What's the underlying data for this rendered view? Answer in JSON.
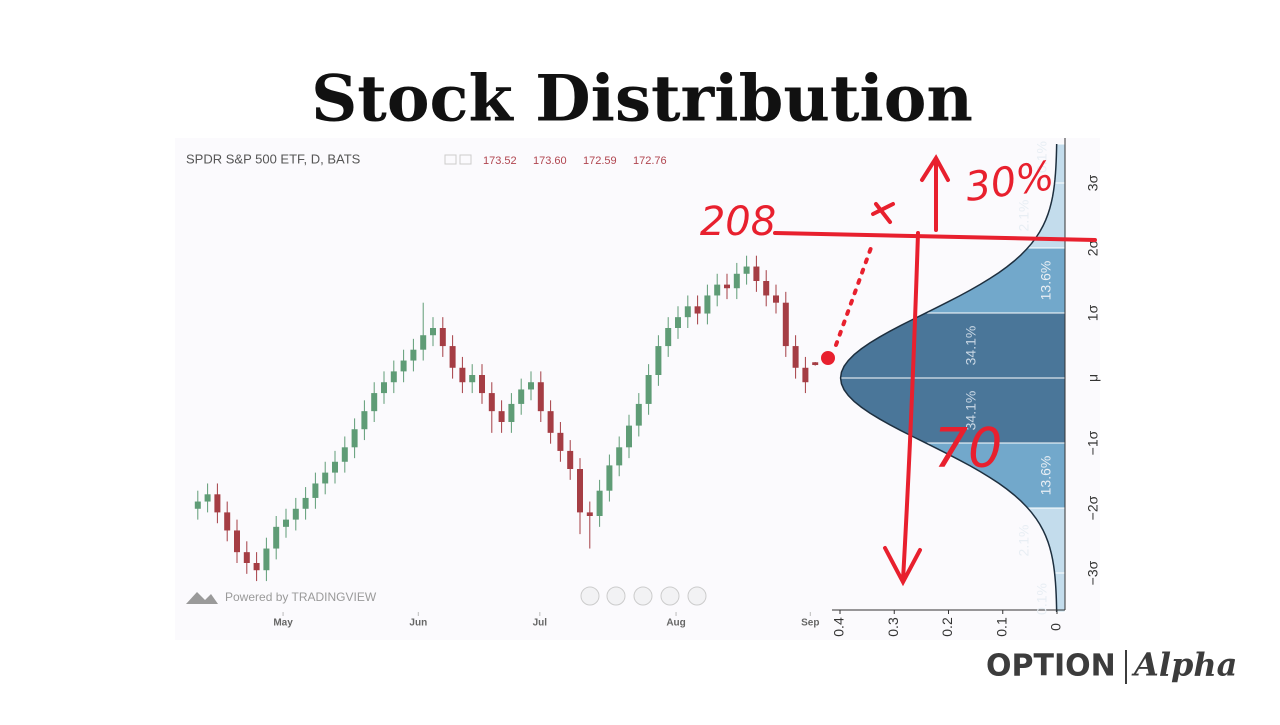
{
  "title": "Stock Distribution",
  "chart_data": [
    {
      "type": "candlestick",
      "title": "SPDR S&P 500 ETF, D, BATS",
      "quote": [
        "173.52",
        "173.60",
        "172.59",
        "172.76"
      ],
      "watermark": "Powered by TRADINGVIEW",
      "up_color": "#5f9c76",
      "down_color": "#a53d44",
      "x": [
        1,
        2,
        3,
        4,
        5,
        6,
        7,
        8,
        9,
        10,
        11,
        12,
        13,
        14,
        15,
        16,
        17,
        18,
        19,
        20,
        21,
        22,
        23,
        24,
        25,
        26,
        27,
        28,
        29,
        30,
        31,
        32,
        33,
        34,
        35,
        36,
        37,
        38,
        39,
        40,
        41,
        42,
        43,
        44,
        45,
        46,
        47,
        48,
        49,
        50,
        51,
        52,
        53,
        54,
        55,
        56,
        57,
        58,
        59,
        60,
        61,
        62,
        63,
        64
      ],
      "open": [
        133,
        135,
        137,
        132,
        127,
        121,
        118,
        116,
        122,
        128,
        130,
        133,
        136,
        140,
        143,
        146,
        150,
        155,
        160,
        165,
        168,
        171,
        174,
        177,
        181,
        183,
        178,
        172,
        168,
        170,
        165,
        160,
        157,
        162,
        166,
        168,
        160,
        154,
        149,
        144,
        132,
        131,
        138,
        145,
        150,
        156,
        162,
        170,
        178,
        183,
        186,
        189,
        187,
        192,
        195,
        194,
        198,
        200,
        196,
        192,
        190,
        178,
        172,
        173.52
      ],
      "high": [
        138,
        140,
        140,
        135,
        130,
        124,
        121,
        125,
        131,
        133,
        136,
        139,
        143,
        146,
        149,
        153,
        158,
        163,
        168,
        171,
        174,
        177,
        180,
        190,
        186,
        186,
        181,
        175,
        173,
        173,
        168,
        163,
        165,
        169,
        171,
        171,
        163,
        157,
        152,
        147,
        135,
        141,
        148,
        153,
        159,
        165,
        173,
        181,
        186,
        189,
        192,
        192,
        195,
        198,
        198,
        201,
        203,
        203,
        199,
        195,
        193,
        181,
        175,
        173.6
      ],
      "low": [
        130,
        132,
        129,
        124,
        118,
        115,
        113,
        113,
        119,
        125,
        127,
        130,
        133,
        137,
        140,
        143,
        147,
        152,
        157,
        162,
        165,
        168,
        171,
        174,
        178,
        175,
        169,
        165,
        165,
        162,
        154,
        154,
        154,
        159,
        163,
        157,
        151,
        146,
        141,
        126,
        122,
        128,
        135,
        142,
        147,
        153,
        159,
        167,
        175,
        180,
        183,
        184,
        184,
        189,
        191,
        191,
        195,
        193,
        189,
        187,
        175,
        169,
        165,
        172.59
      ],
      "close": [
        135,
        137,
        132,
        127,
        121,
        118,
        116,
        122,
        128,
        130,
        133,
        136,
        140,
        143,
        146,
        150,
        155,
        160,
        165,
        168,
        171,
        174,
        177,
        181,
        183,
        178,
        172,
        168,
        170,
        165,
        160,
        157,
        162,
        166,
        168,
        160,
        154,
        149,
        144,
        132,
        131,
        138,
        145,
        150,
        156,
        162,
        170,
        178,
        183,
        186,
        189,
        187,
        192,
        195,
        194,
        198,
        200,
        196,
        192,
        190,
        178,
        172,
        168,
        172.76
      ],
      "xlim": [
        0,
        65
      ],
      "xticks": [
        {
          "value": 9.7,
          "label": "May"
        },
        {
          "value": 23.5,
          "label": "Jun"
        },
        {
          "value": 35.9,
          "label": "Jul"
        },
        {
          "value": 49.8,
          "label": "Aug"
        },
        {
          "value": 63.5,
          "label": "Sep"
        }
      ],
      "ylim": [
        105,
        235
      ]
    },
    {
      "type": "distribution",
      "xlim": [
        0.4,
        0
      ],
      "xticks": [
        0.4,
        0.3,
        0.2,
        0.1,
        0
      ],
      "sigma_labels": [
        "3σ",
        "2σ",
        "1σ",
        "μ",
        "−1σ",
        "−2σ",
        "−3σ"
      ],
      "band_labels": [
        "0.1%",
        "2.1%",
        "13.6%",
        "34.1%",
        "34.1%",
        "13.6%",
        "2.1%",
        "0.1%"
      ],
      "colors": {
        "outer": "#c3dcec",
        "middle": "#72a8cb",
        "inner": "#4a7699"
      }
    }
  ],
  "annotations": {
    "target": "208",
    "upper": "30%",
    "lower": "70"
  },
  "logo": {
    "left": "OPTION",
    "right": "Alpha"
  }
}
